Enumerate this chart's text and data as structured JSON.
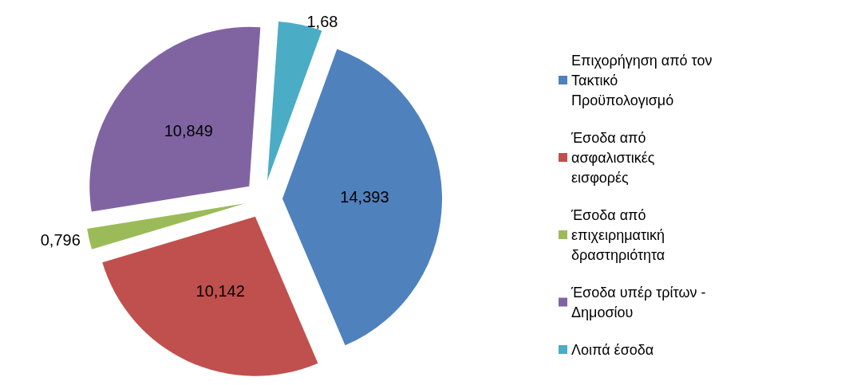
{
  "chart_data": {
    "type": "pie",
    "categories": [
      "Επιχορήγηση από τον Τακτικό Προϋπολογισμό",
      "Έσοδα από ασφαλιστικές εισφορές",
      "Έσοδα από επιχειρηματική δραστηριότητα",
      "Έσοδα υπέρ τρίτων - Δημοσίου",
      "Λοιπά έσοδα"
    ],
    "values": [
      14.393,
      10.142,
      0.796,
      10.849,
      1.68
    ],
    "value_labels": [
      "14,393",
      "10,142",
      "0,796",
      "10,849",
      "1,68"
    ],
    "colors": [
      "#4f81bd",
      "#c0504d",
      "#9bbb59",
      "#8064a2",
      "#4bacc6"
    ],
    "legend": "right"
  }
}
